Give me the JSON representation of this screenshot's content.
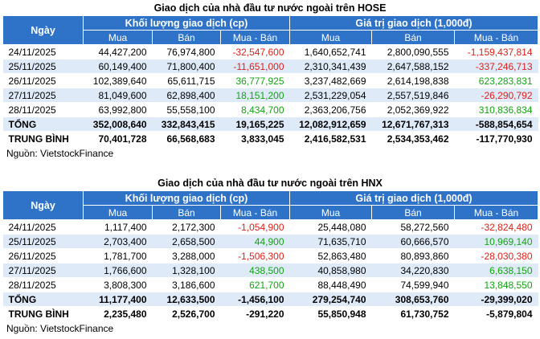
{
  "tables": [
    {
      "title": "Giao dịch của nhà đầu tư nước ngoài trên HOSE",
      "header": {
        "date": "Ngày",
        "groups": [
          "Khối lượng giao dịch (cp)",
          "Giá trị giao dịch (1,000đ)"
        ],
        "sub": [
          "Mua",
          "Bán",
          "Mua - Bán",
          "Mua",
          "Bán",
          "Mua - Bán"
        ]
      },
      "rows": [
        [
          "24/11/2025",
          "44,427,200",
          "76,974,800",
          "-32,547,600",
          "1,640,652,741",
          "2,800,090,555",
          "-1,159,437,814"
        ],
        [
          "25/11/2025",
          "60,149,400",
          "71,800,400",
          "-11,651,000",
          "2,310,341,439",
          "2,647,588,152",
          "-337,246,713"
        ],
        [
          "26/11/2025",
          "102,389,640",
          "65,611,715",
          "36,777,925",
          "3,237,482,669",
          "2,614,198,838",
          "623,283,831"
        ],
        [
          "27/11/2025",
          "81,049,600",
          "62,898,400",
          "18,151,200",
          "2,531,229,054",
          "2,557,519,846",
          "-26,290,792"
        ],
        [
          "28/11/2025",
          "63,992,800",
          "55,558,100",
          "8,434,700",
          "2,363,206,756",
          "2,052,369,922",
          "310,836,834"
        ]
      ],
      "summary": [
        [
          "TỔNG",
          "352,008,640",
          "332,843,415",
          "19,165,225",
          "12,082,912,659",
          "12,671,767,313",
          "-588,854,654"
        ],
        [
          "TRUNG BÌNH",
          "70,401,728",
          "66,568,683",
          "3,833,045",
          "2,416,582,531",
          "2,534,353,462",
          "-117,770,930"
        ]
      ],
      "source": "Nguồn: VietstockFinance"
    },
    {
      "title": "Giao dịch của nhà đầu tư nước ngoài trên HNX",
      "header": {
        "date": "Ngày",
        "groups": [
          "Khối lượng giao dịch (cp)",
          "Giá trị giao dịch (1,000đ)"
        ],
        "sub": [
          "Mua",
          "Bán",
          "Mua - Bán",
          "Mua",
          "Bán",
          "Mua - Bán"
        ]
      },
      "rows": [
        [
          "24/11/2025",
          "1,117,400",
          "2,172,300",
          "-1,054,900",
          "25,448,080",
          "58,272,560",
          "-32,824,480"
        ],
        [
          "25/11/2025",
          "2,703,400",
          "2,658,500",
          "44,900",
          "71,635,710",
          "60,666,570",
          "10,969,140"
        ],
        [
          "26/11/2025",
          "1,781,700",
          "3,288,000",
          "-1,506,300",
          "52,863,480",
          "80,893,860",
          "-28,030,380"
        ],
        [
          "27/11/2025",
          "1,766,600",
          "1,328,100",
          "438,500",
          "40,858,980",
          "34,220,830",
          "6,638,150"
        ],
        [
          "28/11/2025",
          "3,808,300",
          "3,186,600",
          "621,700",
          "88,448,490",
          "74,599,940",
          "13,848,550"
        ]
      ],
      "summary": [
        [
          "TỔNG",
          "11,177,400",
          "12,633,500",
          "-1,456,100",
          "279,254,740",
          "308,653,760",
          "-29,399,020"
        ],
        [
          "TRUNG BÌNH",
          "2,235,480",
          "2,526,700",
          "-291,220",
          "55,850,948",
          "61,730,752",
          "-5,879,804"
        ]
      ],
      "source": "Nguồn: VietstockFinance"
    }
  ]
}
